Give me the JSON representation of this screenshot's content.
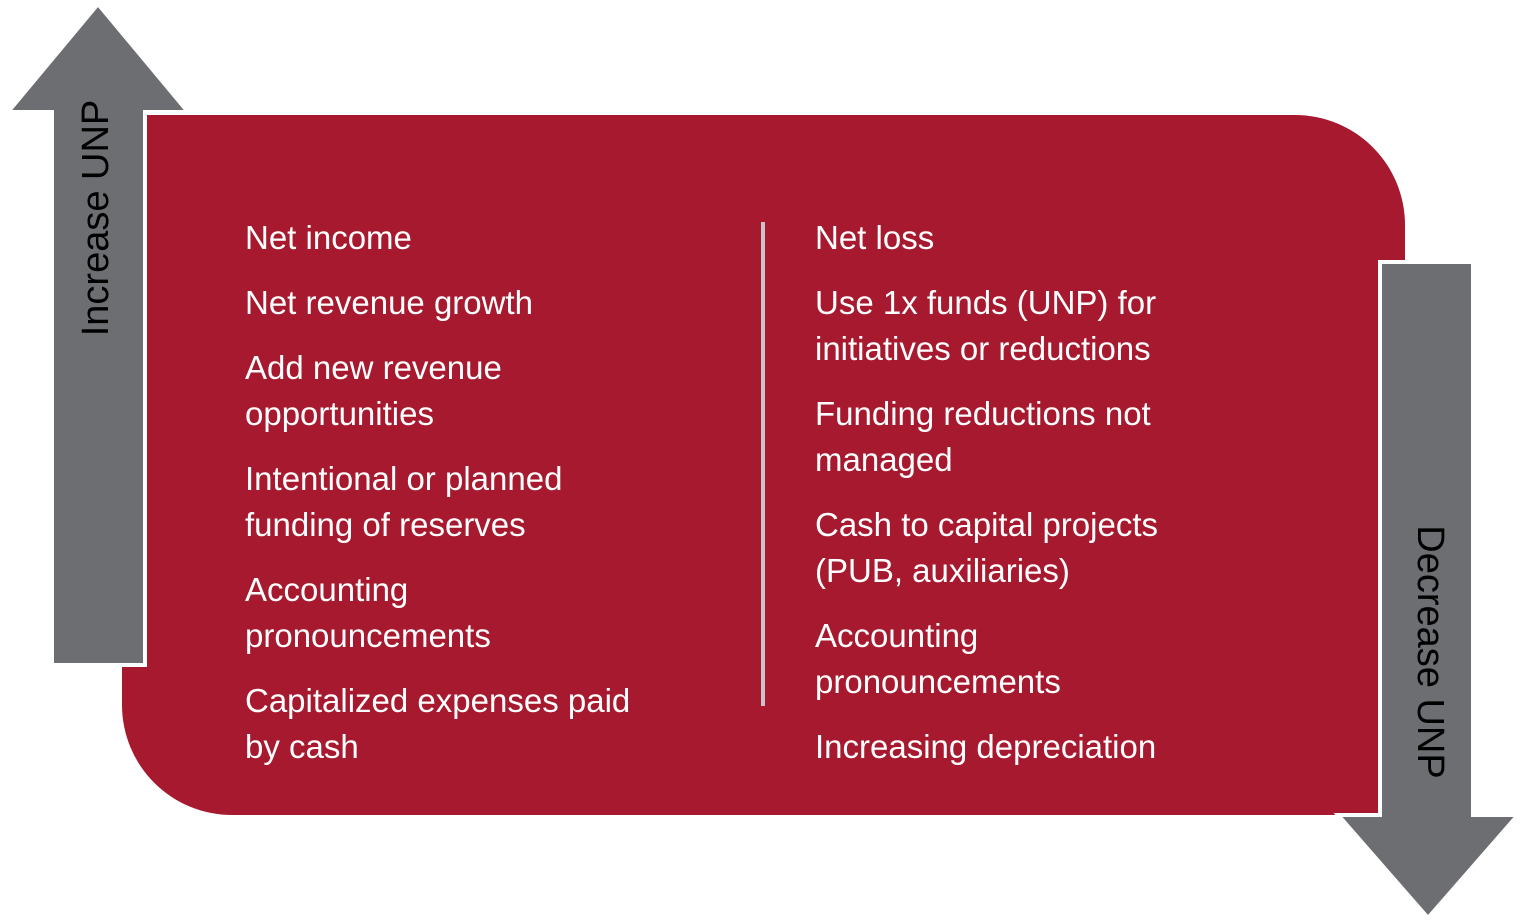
{
  "increase_arrow": {
    "label": "Increase UNP"
  },
  "decrease_arrow": {
    "label": "Decrease UNP"
  },
  "increase_items": [
    [
      "Net income"
    ],
    [
      "Net revenue growth"
    ],
    [
      "Add new revenue",
      "opportunities"
    ],
    [
      "Intentional or planned",
      "funding of reserves"
    ],
    [
      "Accounting",
      "pronouncements"
    ],
    [
      "Capitalized expenses paid",
      "by cash"
    ]
  ],
  "decrease_items": [
    [
      "Net loss"
    ],
    [
      "Use 1x funds (UNP) for",
      "initiatives or reductions"
    ],
    [
      "Funding reductions not",
      "managed"
    ],
    [
      "Cash to capital projects",
      "(PUB, auxiliaries)"
    ],
    [
      "Accounting",
      "pronouncements"
    ],
    [
      "Increasing depreciation"
    ]
  ]
}
